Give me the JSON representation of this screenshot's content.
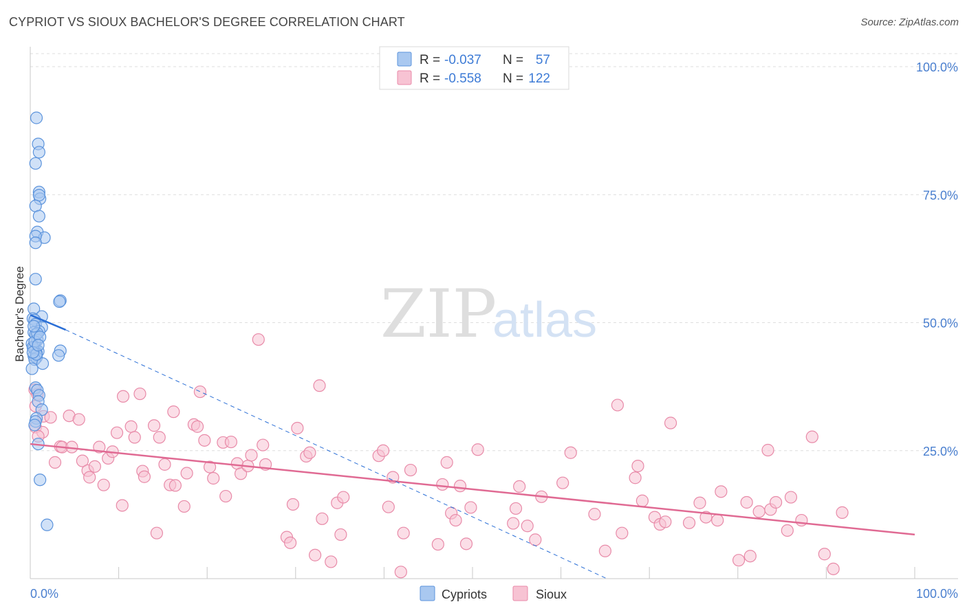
{
  "title": "CYPRIOT VS SIOUX BACHELOR'S DEGREE CORRELATION CHART",
  "source": "Source: ZipAtlas.com",
  "watermark": {
    "part1": "ZIP",
    "part2": "atlas"
  },
  "colors": {
    "cypriots_fill": "#a9c8f0",
    "cypriots_stroke": "#5b93dc",
    "cypriots_line": "#2b6fd6",
    "sioux_fill": "#f7c3d3",
    "sioux_stroke": "#e88aa8",
    "sioux_line": "#e06a93",
    "tick_text": "#4a7fcf",
    "grid": "#dddddd"
  },
  "legend": {
    "rows": [
      {
        "r_label": "R =",
        "r_value": "-0.037",
        "n_label": "N =",
        "n_value": "57"
      },
      {
        "r_label": "R =",
        "r_value": "-0.558",
        "n_label": "N =",
        "n_value": "122"
      }
    ]
  },
  "bottom_legend": [
    "Cypriots",
    "Sioux"
  ],
  "chart_data": {
    "type": "scatter",
    "title": "CYPRIOT VS SIOUX BACHELOR'S DEGREE CORRELATION CHART",
    "xlabel": "",
    "ylabel": "Bachelor's Degree",
    "xlim": [
      0,
      100
    ],
    "ylim": [
      0,
      100
    ],
    "x_tick_labels": [
      "0.0%",
      "100.0%"
    ],
    "y_ticks": [
      25,
      50,
      75,
      100
    ],
    "y_tick_labels": [
      "25.0%",
      "50.0%",
      "75.0%",
      "100.0%"
    ],
    "grid": true,
    "series": [
      {
        "name": "Cypriots",
        "R": -0.037,
        "N": 57,
        "trend_solid": {
          "x": [
            0,
            4
          ],
          "y": [
            51.5,
            48.6
          ]
        },
        "trend_dashed": {
          "x": [
            4,
            65.2
          ],
          "y": [
            48.6,
            0
          ]
        },
        "points": [
          [
            0.7,
            90.0
          ],
          [
            0.9,
            84.9
          ],
          [
            1.0,
            83.3
          ],
          [
            0.6,
            81.1
          ],
          [
            1.0,
            75.5
          ],
          [
            1.1,
            74.2
          ],
          [
            1.0,
            74.9
          ],
          [
            0.6,
            72.8
          ],
          [
            1.0,
            70.8
          ],
          [
            0.8,
            67.7
          ],
          [
            1.6,
            66.6
          ],
          [
            0.6,
            66.9
          ],
          [
            0.6,
            65.6
          ],
          [
            0.6,
            58.5
          ],
          [
            3.4,
            54.3
          ],
          [
            3.3,
            54.1
          ],
          [
            0.4,
            52.7
          ],
          [
            1.3,
            51.2
          ],
          [
            0.3,
            50.8
          ],
          [
            0.5,
            50.5
          ],
          [
            0.6,
            49.7
          ],
          [
            1.3,
            49.1
          ],
          [
            1.0,
            48.3
          ],
          [
            0.4,
            48.1
          ],
          [
            0.6,
            47.7
          ],
          [
            0.8,
            46.6
          ],
          [
            0.2,
            45.9
          ],
          [
            0.4,
            45.0
          ],
          [
            0.6,
            44.7
          ],
          [
            0.9,
            44.4
          ],
          [
            0.7,
            44.0
          ],
          [
            3.4,
            44.5
          ],
          [
            3.2,
            43.6
          ],
          [
            0.4,
            43.5
          ],
          [
            0.7,
            43.2
          ],
          [
            0.5,
            42.8
          ],
          [
            1.4,
            42.0
          ],
          [
            0.2,
            41.0
          ],
          [
            0.6,
            37.3
          ],
          [
            0.8,
            36.8
          ],
          [
            1.0,
            35.8
          ],
          [
            0.9,
            34.6
          ],
          [
            1.3,
            33.0
          ],
          [
            0.7,
            31.3
          ],
          [
            0.6,
            30.7
          ],
          [
            0.5,
            30.0
          ],
          [
            0.9,
            26.3
          ],
          [
            1.1,
            19.3
          ],
          [
            1.9,
            10.5
          ],
          [
            0.3,
            45.2
          ],
          [
            0.5,
            46.3
          ],
          [
            0.8,
            47.9
          ],
          [
            0.4,
            49.3
          ],
          [
            1.1,
            47.2
          ],
          [
            0.7,
            43.8
          ],
          [
            0.3,
            44.2
          ],
          [
            0.9,
            45.6
          ]
        ]
      },
      {
        "name": "Sioux",
        "R": -0.558,
        "N": 122,
        "trend": {
          "x": [
            0,
            100
          ],
          "y": [
            26.3,
            8.6
          ]
        },
        "points": [
          [
            0.5,
            36.9
          ],
          [
            0.8,
            36.0
          ],
          [
            0.6,
            33.7
          ],
          [
            1.5,
            31.7
          ],
          [
            2.3,
            31.5
          ],
          [
            0.6,
            29.6
          ],
          [
            1.4,
            28.6
          ],
          [
            0.9,
            27.8
          ],
          [
            2.8,
            22.7
          ],
          [
            3.4,
            25.8
          ],
          [
            3.6,
            25.7
          ],
          [
            4.4,
            31.8
          ],
          [
            4.7,
            25.7
          ],
          [
            5.5,
            31.1
          ],
          [
            5.9,
            23.0
          ],
          [
            6.5,
            21.1
          ],
          [
            6.7,
            19.8
          ],
          [
            7.3,
            21.9
          ],
          [
            7.8,
            25.7
          ],
          [
            8.3,
            18.3
          ],
          [
            8.8,
            23.5
          ],
          [
            9.3,
            24.8
          ],
          [
            9.8,
            28.5
          ],
          [
            10.4,
            14.3
          ],
          [
            10.5,
            35.6
          ],
          [
            11.4,
            29.7
          ],
          [
            11.8,
            27.6
          ],
          [
            12.4,
            36.1
          ],
          [
            12.7,
            21.0
          ],
          [
            12.9,
            19.9
          ],
          [
            14.0,
            29.9
          ],
          [
            14.3,
            8.9
          ],
          [
            14.6,
            27.6
          ],
          [
            15.2,
            22.3
          ],
          [
            15.8,
            18.3
          ],
          [
            16.2,
            32.6
          ],
          [
            16.4,
            18.2
          ],
          [
            17.4,
            14.1
          ],
          [
            17.7,
            20.6
          ],
          [
            18.5,
            30.1
          ],
          [
            18.9,
            29.7
          ],
          [
            19.2,
            36.5
          ],
          [
            19.7,
            27.0
          ],
          [
            20.3,
            21.8
          ],
          [
            20.7,
            19.6
          ],
          [
            21.8,
            26.6
          ],
          [
            22.1,
            16.1
          ],
          [
            22.7,
            26.7
          ],
          [
            23.4,
            22.5
          ],
          [
            23.8,
            20.5
          ],
          [
            24.6,
            22.0
          ],
          [
            25.0,
            24.1
          ],
          [
            25.8,
            46.7
          ],
          [
            26.3,
            26.1
          ],
          [
            26.6,
            22.3
          ],
          [
            29.0,
            8.1
          ],
          [
            29.4,
            7.0
          ],
          [
            29.7,
            14.5
          ],
          [
            30.2,
            29.4
          ],
          [
            31.2,
            23.9
          ],
          [
            31.6,
            24.6
          ],
          [
            32.2,
            4.6
          ],
          [
            32.7,
            37.7
          ],
          [
            33.0,
            11.7
          ],
          [
            34.0,
            3.3
          ],
          [
            34.7,
            14.8
          ],
          [
            35.1,
            8.6
          ],
          [
            35.4,
            15.9
          ],
          [
            39.4,
            24.0
          ],
          [
            39.9,
            25.0
          ],
          [
            40.5,
            14.0
          ],
          [
            41.0,
            19.8
          ],
          [
            41.9,
            1.3
          ],
          [
            42.2,
            8.9
          ],
          [
            43.0,
            21.2
          ],
          [
            46.1,
            6.7
          ],
          [
            46.6,
            18.4
          ],
          [
            47.1,
            22.7
          ],
          [
            47.6,
            12.8
          ],
          [
            48.1,
            11.4
          ],
          [
            48.6,
            18.1
          ],
          [
            49.3,
            6.8
          ],
          [
            49.8,
            13.9
          ],
          [
            50.6,
            25.2
          ],
          [
            54.6,
            10.8
          ],
          [
            54.9,
            13.7
          ],
          [
            55.3,
            18.0
          ],
          [
            56.2,
            10.3
          ],
          [
            57.1,
            7.6
          ],
          [
            57.8,
            16.0
          ],
          [
            60.2,
            18.7
          ],
          [
            61.1,
            24.6
          ],
          [
            63.8,
            12.6
          ],
          [
            65.0,
            5.4
          ],
          [
            66.4,
            33.9
          ],
          [
            66.9,
            8.9
          ],
          [
            68.4,
            19.7
          ],
          [
            68.7,
            22.0
          ],
          [
            69.2,
            15.2
          ],
          [
            70.6,
            12.0
          ],
          [
            71.2,
            10.6
          ],
          [
            71.8,
            11.1
          ],
          [
            72.4,
            30.4
          ],
          [
            74.5,
            10.9
          ],
          [
            75.7,
            14.8
          ],
          [
            76.4,
            12.0
          ],
          [
            77.7,
            11.4
          ],
          [
            78.1,
            17.0
          ],
          [
            80.1,
            3.6
          ],
          [
            81.0,
            14.9
          ],
          [
            81.4,
            4.4
          ],
          [
            82.4,
            13.1
          ],
          [
            83.4,
            25.1
          ],
          [
            83.7,
            13.5
          ],
          [
            84.3,
            14.9
          ],
          [
            85.6,
            9.4
          ],
          [
            86.0,
            15.9
          ],
          [
            87.2,
            11.4
          ],
          [
            88.4,
            27.7
          ],
          [
            89.8,
            4.8
          ],
          [
            90.8,
            1.9
          ],
          [
            91.8,
            12.9
          ]
        ]
      }
    ]
  }
}
